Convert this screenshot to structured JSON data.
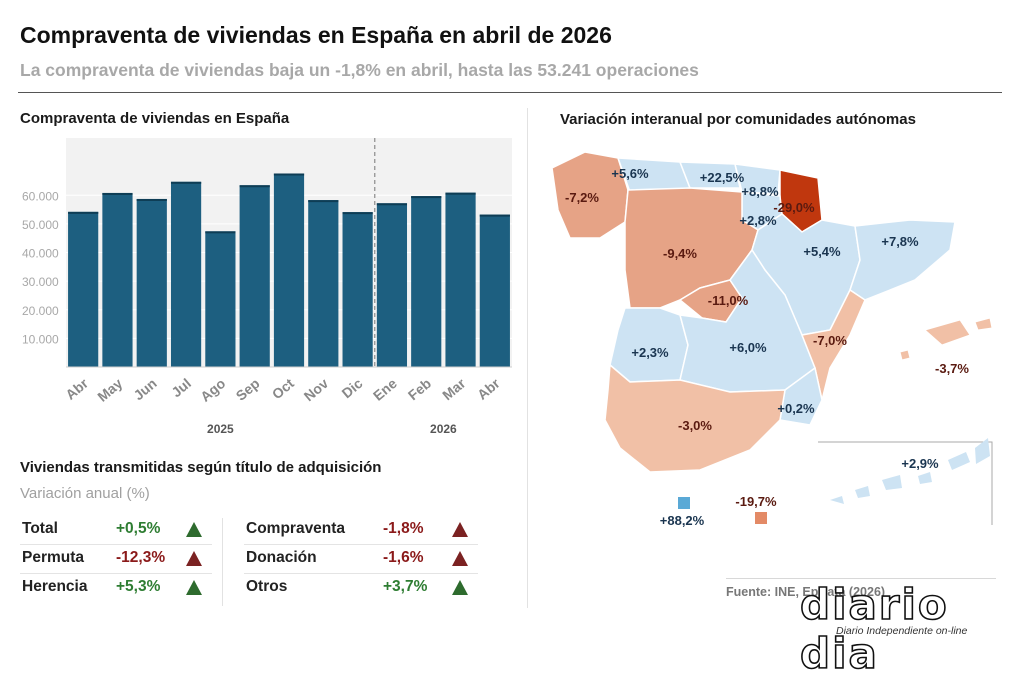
{
  "header": {
    "title": "Compraventa de viviendas en España en abril de 2026",
    "subtitle": "La compraventa de viviendas baja un -1,8% en abril, hasta las 53.241 operaciones"
  },
  "bar_section": {
    "title": "Compraventa de viviendas en España"
  },
  "chart_data": [
    {
      "type": "bar",
      "title": "Compraventa de viviendas en España",
      "categories": [
        "Abr",
        "May",
        "Jun",
        "Jul",
        "Ago",
        "Sep",
        "Oct",
        "Nov",
        "Dic",
        "Ene",
        "Feb",
        "Mar",
        "Abr"
      ],
      "values": [
        54200,
        60800,
        58700,
        64700,
        47400,
        63500,
        67600,
        58300,
        54100,
        57200,
        59700,
        60900,
        53241
      ],
      "year_labels": [
        {
          "label": "2025",
          "first_index": 0,
          "last_index": 8
        },
        {
          "label": "2026",
          "first_index": 9,
          "last_index": 12
        }
      ],
      "ylim": [
        0,
        80000
      ],
      "yticks": [
        10000,
        20000,
        30000,
        40000,
        50000,
        60000
      ],
      "ytick_labels": [
        "10.000",
        "20.000",
        "30.000",
        "40.000",
        "50.000",
        "60.000"
      ],
      "bar_color": "#1d5f80",
      "plot_background": "#f2f2f2",
      "xlabel": "",
      "ylabel": ""
    },
    {
      "type": "table",
      "title": "Viviendas transmitidas según título de adquisición",
      "subtitle": "Variación anual (%)",
      "rows": [
        {
          "label": "Total",
          "value": "+0,5%",
          "trend": "up"
        },
        {
          "label": "Permuta",
          "value": "-12,3%",
          "trend": "down"
        },
        {
          "label": "Herencia",
          "value": "+5,3%",
          "trend": "up"
        },
        {
          "label": "Compraventa",
          "value": "-1,8%",
          "trend": "down"
        },
        {
          "label": "Donación",
          "value": "-1,6%",
          "trend": "down"
        },
        {
          "label": "Otros",
          "value": "+3,7%",
          "trend": "up"
        }
      ]
    },
    {
      "type": "choropleth",
      "title": "Variación interanual por comunidades autónomas",
      "labels": [
        "+5,6%",
        "+22,5%",
        "+8,8%",
        "-29,0%",
        "-7,2%",
        "+2,8%",
        "-9,4%",
        "+5,4%",
        "+7,8%",
        "-11,0%",
        "-7,0%",
        "+2,3%",
        "+6,0%",
        "-3,7%",
        "+0,2%",
        "-3,0%",
        "+2,9%",
        "-19,7%",
        "+88,2%"
      ],
      "legend_markers": [
        "+88,2%",
        "-19,7%"
      ]
    }
  ],
  "colors": {
    "positive_text": "#2e7d32",
    "negative_text": "#8b1a1a",
    "positive_up": "#2e6b2e",
    "negative_down": "#7b2222",
    "map_light_blue": "#cde3f3",
    "map_salmon": "#e6a386",
    "map_light_salmon": "#f1c0a6",
    "map_dark_red": "#c0370e",
    "map_blue_marker": "#5aa9d6"
  },
  "footer": {
    "source": "Fuente: INE, EpData (2026)",
    "logo": "diario dia",
    "logo_tagline": "Diario Independiente on-line"
  }
}
